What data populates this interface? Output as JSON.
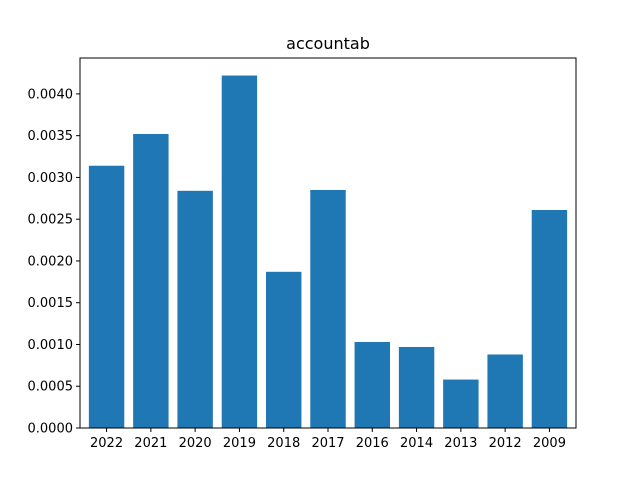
{
  "chart_data": {
    "type": "bar",
    "title": "accountab",
    "xlabel": "",
    "ylabel": "",
    "categories": [
      "2022",
      "2021",
      "2020",
      "2019",
      "2018",
      "2017",
      "2016",
      "2014",
      "2013",
      "2012",
      "2009"
    ],
    "values": [
      0.00314,
      0.00352,
      0.00284,
      0.00422,
      0.00187,
      0.00285,
      0.00103,
      0.00097,
      0.00058,
      0.00088,
      0.00261
    ],
    "ylim": [
      0,
      0.00443
    ],
    "yticks": [
      "0.0000",
      "0.0005",
      "0.0010",
      "0.0015",
      "0.0020",
      "0.0025",
      "0.0030",
      "0.0035",
      "0.0040"
    ],
    "ytick_values": [
      0,
      0.0005,
      0.001,
      0.0015,
      0.002,
      0.0025,
      0.003,
      0.0035,
      0.004
    ],
    "grid": false,
    "bar_color": "#1f77b4"
  }
}
